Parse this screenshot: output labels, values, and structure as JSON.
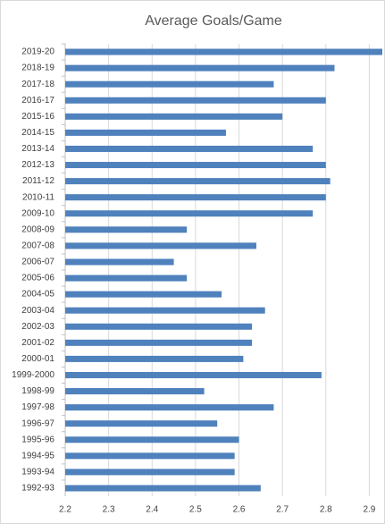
{
  "chart_data": {
    "type": "barh",
    "title": "Average Goals/Game",
    "categories": [
      "2019-20",
      "2018-19",
      "2017-18",
      "2016-17",
      "2015-16",
      "2014-15",
      "2013-14",
      "2012-13",
      "2011-12",
      "2010-11",
      "2009-10",
      "2008-09",
      "2007-08",
      "2006-07",
      "2005-06",
      "2004-05",
      "2003-04",
      "2002-03",
      "2001-02",
      "2000-01",
      "1999-2000",
      "1998-99",
      "1997-98",
      "1996-97",
      "1995-96",
      "1994-95",
      "1993-94",
      "1992-93"
    ],
    "values": [
      2.93,
      2.82,
      2.68,
      2.8,
      2.7,
      2.57,
      2.77,
      2.8,
      2.81,
      2.8,
      2.77,
      2.48,
      2.64,
      2.45,
      2.48,
      2.56,
      2.66,
      2.63,
      2.63,
      2.61,
      2.79,
      2.52,
      2.68,
      2.55,
      2.6,
      2.59,
      2.59,
      2.65
    ],
    "color": "#4f81bd",
    "xlim": [
      2.2,
      2.93
    ],
    "xticks": [
      2.2,
      2.3,
      2.4,
      2.5,
      2.6,
      2.7,
      2.8,
      2.9
    ],
    "grid": true
  }
}
